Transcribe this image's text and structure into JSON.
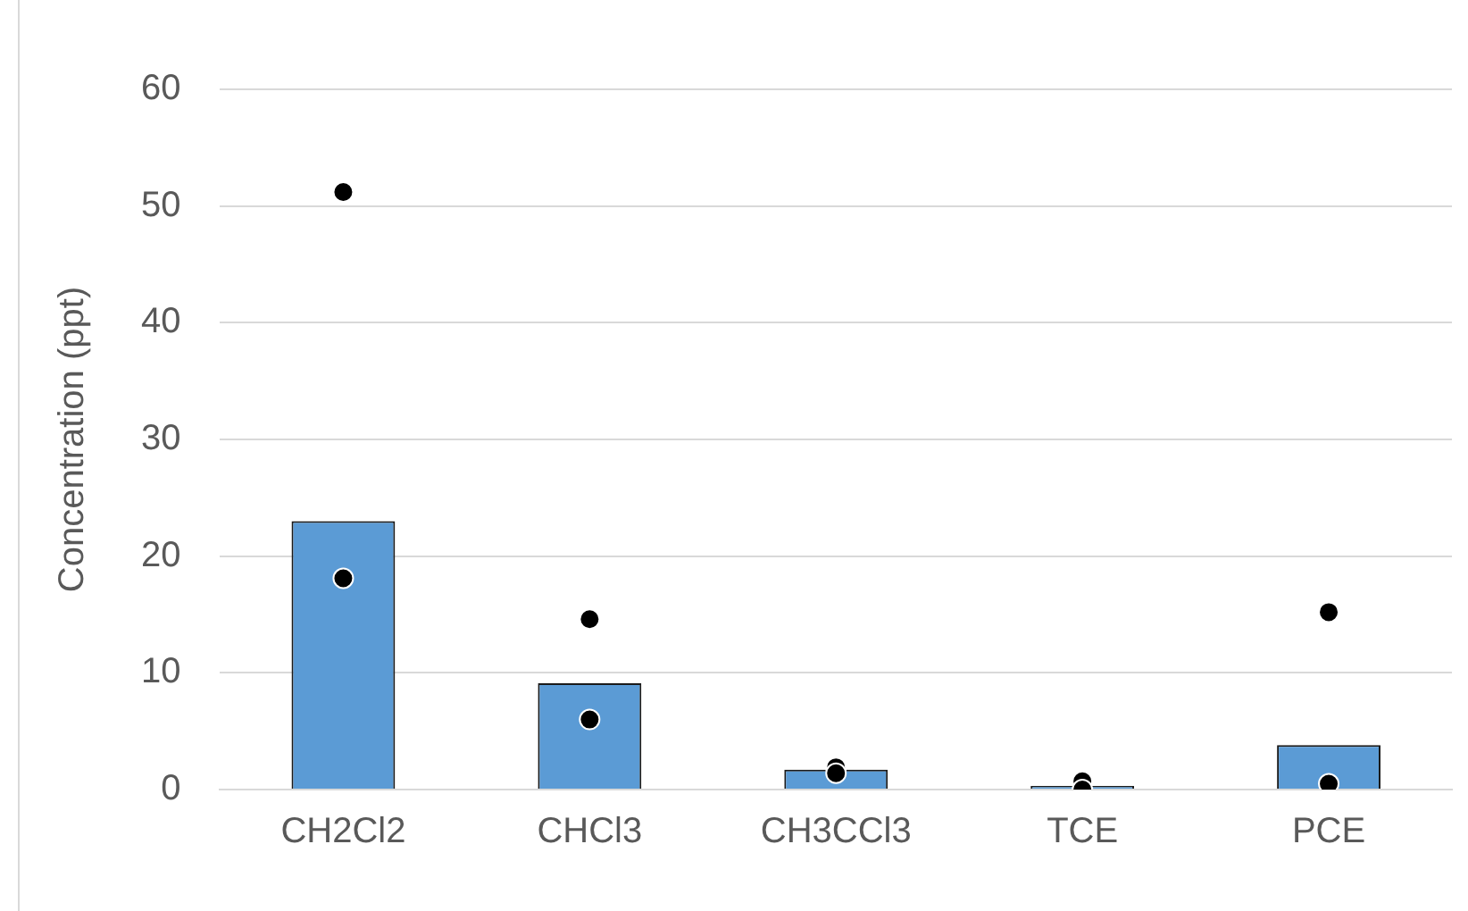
{
  "chart_data": {
    "type": "bar",
    "ylabel": "Concentration (ppt)",
    "categories": [
      "CH2Cl2",
      "CHCl3",
      "CH3CCl3",
      "TCE",
      "PCE"
    ],
    "series": [
      {
        "color": "#5b9bd5",
        "values": [
          23,
          9.1,
          1.7,
          0.3,
          3.8
        ]
      },
      {
        "type": "scatter",
        "color": "#000000",
        "x": [
          "CH2Cl2",
          "CH2Cl2",
          "CHCl3",
          "CHCl3",
          "CH3CCl3",
          "CH3CCl3",
          "TCE",
          "TCE",
          "PCE",
          "PCE"
        ],
        "values": [
          51.2,
          18.1,
          14.6,
          6.0,
          1.9,
          1.4,
          0.7,
          0.0,
          15.2,
          0.5
        ]
      }
    ],
    "ylim": [
      0,
      60
    ],
    "yticks": [
      0,
      10,
      20,
      30,
      40,
      50,
      60
    ],
    "grid": "y",
    "marker": "circle"
  }
}
